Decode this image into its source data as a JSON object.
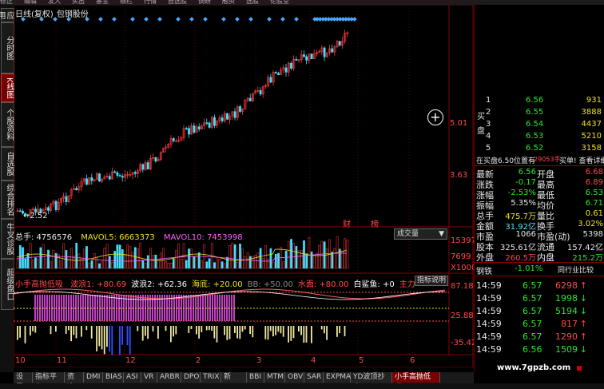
{
  "top_menu": [
    "修正",
    "编辑",
    "发入",
    "买出",
    "基金",
    "横栏",
    "行情",
    "自选股",
    "调研",
    "融资",
    "选股",
    "论股堂"
  ],
  "left_tabs": [
    {
      "label": "应用",
      "active": false
    },
    {
      "label": "分时图",
      "active": false
    },
    {
      "label": "K线图",
      "active": true
    },
    {
      "label": "个股资料",
      "active": false
    },
    {
      "label": "自选股",
      "active": false
    },
    {
      "label": "综合排名",
      "active": false
    },
    {
      "label": "牛叉诊股",
      "active": false
    },
    {
      "label": "超级盘口",
      "active": false
    }
  ],
  "chart": {
    "title": "日线(复权)",
    "stock_name": "包钢股份",
    "price_marks": {
      "low_label": "2.52",
      "mid1": "5.01",
      "mid2": "3.63"
    },
    "event_labels": [
      "财",
      "榜"
    ],
    "volume": {
      "label_total": "总手: 4756576",
      "mavol5": "MAVOL5: 6663373",
      "mavol10": "MAVOL10: 7453998",
      "dropdown": "成交量",
      "scale_top": "15397",
      "scale_mid": "7699",
      "scale_unit": "X1000"
    },
    "indicator": {
      "name": "小手高抛低吸",
      "items": [
        {
          "text": "波浪1: +80.69",
          "color": "#ff4a4a"
        },
        {
          "text": "波浪2: +62.36",
          "color": "#ffffff"
        },
        {
          "text": "海底: +20.00",
          "color": "#f0e020"
        },
        {
          "text": "BB: +50.00",
          "color": "#888888"
        },
        {
          "text": "水面: +80.00",
          "color": "#ff4a4a"
        },
        {
          "text": "白鲨鱼: +0",
          "color": "#ffffff"
        },
        {
          "text": "主力",
          "color": "#ff4a4a"
        }
      ],
      "help_button": "指标说明",
      "scale": [
        "87.18",
        "25.88",
        "-35.42"
      ]
    },
    "x_labels": [
      "10",
      "11",
      "12",
      "2",
      "3",
      "4",
      "5",
      "6"
    ]
  },
  "right_panel": {
    "buy_label": "买盘",
    "bids": [
      {
        "n": "1",
        "price": "6.56",
        "vol": "931"
      },
      {
        "n": "2",
        "price": "6.55",
        "vol": "3888"
      },
      {
        "n": "3",
        "price": "6.54",
        "vol": "4437"
      },
      {
        "n": "4",
        "price": "6.53",
        "vol": "5210"
      },
      {
        "n": "5",
        "price": "6.52",
        "vol": "3158"
      }
    ],
    "bid_note": "在买盘6.50位置有",
    "bid_note_vol": "29053手",
    "bid_note_link": "买单! 查看详细",
    "quotes": [
      {
        "k1": "最新",
        "v1": "6.56",
        "c1": "green",
        "k2": "开盘",
        "v2": "6.68",
        "c2": "red"
      },
      {
        "k1": "涨跌",
        "v1": "-0.17",
        "c1": "green",
        "k2": "最高",
        "v2": "6.89",
        "c2": "red"
      },
      {
        "k1": "涨幅",
        "v1": "-2.53%",
        "c1": "green",
        "k2": "最低",
        "v2": "6.53",
        "c2": "green"
      },
      {
        "k1": "振幅",
        "v1": "5.35%",
        "c1": "white",
        "k2": "均价",
        "v2": "6.71",
        "c2": "green"
      },
      {
        "k1": "总手",
        "v1": "475.7万",
        "c1": "yellow",
        "k2": "量比",
        "v2": "0.61",
        "c2": "yellow"
      },
      {
        "k1": "金额",
        "v1": "31.92亿",
        "c1": "cyan",
        "k2": "换手",
        "v2": "3.02%",
        "c2": "yellow"
      },
      {
        "k1": "市盈",
        "v1": "1066",
        "c1": "white",
        "k2": "市盈(动)",
        "v2": "5398",
        "c2": "white"
      },
      {
        "k1": "股本",
        "v1": "325.61亿",
        "c1": "white",
        "k2": "流通",
        "v2": "157.42亿",
        "c2": "white"
      },
      {
        "k1": "外盘",
        "v1": "260.5万",
        "c1": "red",
        "k2": "内盘",
        "v2": "215.2万",
        "c2": "green"
      }
    ],
    "sector_label": "钢铁",
    "sector_change": "-1.01%",
    "sector_button": "同行业比较",
    "ticks": [
      {
        "time": "14:59",
        "price": "6.57",
        "vol": "6298",
        "dir": "up"
      },
      {
        "time": "14:59",
        "price": "6.57",
        "vol": "1998",
        "dir": "down"
      },
      {
        "time": "14:59",
        "price": "6.57",
        "vol": "5194",
        "dir": "down"
      },
      {
        "time": "14:59",
        "price": "6.57",
        "vol": "817",
        "dir": "up"
      },
      {
        "time": "14:59",
        "price": "6.57",
        "vol": "1290",
        "dir": "up"
      },
      {
        "time": "14:59",
        "price": "6.56",
        "vol": "1509",
        "dir": "down"
      }
    ]
  },
  "bottom_tabs": [
    "设置",
    "指标平台",
    "资选",
    "DMI",
    "BIAS",
    "ASI",
    "VR",
    "ARBR",
    "DPO",
    "TRIX",
    "新DMA",
    "BBI",
    "MTM",
    "OBV",
    "SAR",
    "EXPMA",
    "YD波顶抄底",
    "小手高抛低吸"
  ],
  "bottom_active": "小手高抛低吸",
  "watermark": "www.7gpzb.com"
}
